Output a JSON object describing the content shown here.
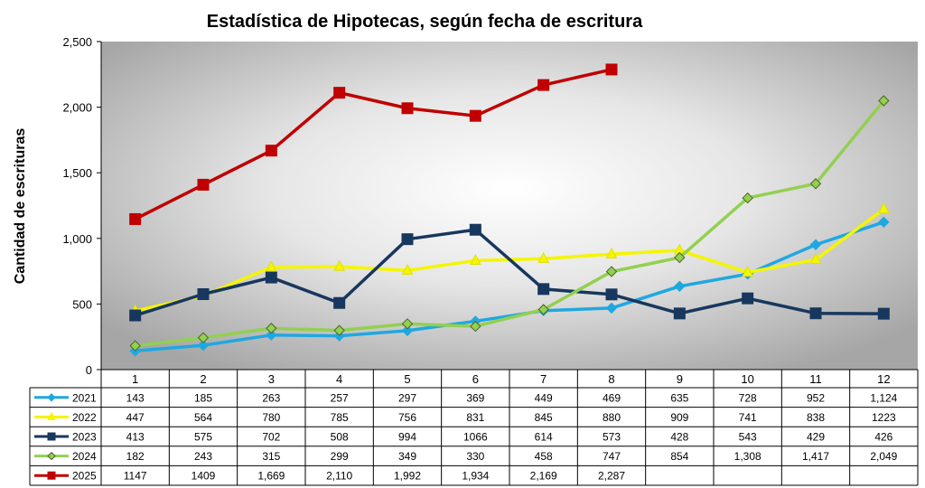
{
  "chart_data": {
    "type": "line",
    "title": "Estadística de Hipotecas, según fecha de escritura",
    "xlabel": "",
    "ylabel": "Cantidad de escrituras",
    "ylim": [
      0,
      2500
    ],
    "yticks": [
      "0",
      "500",
      "1,000",
      "1,500",
      "2,000",
      "2,500"
    ],
    "categories": [
      "1",
      "2",
      "3",
      "4",
      "5",
      "6",
      "7",
      "8",
      "9",
      "10",
      "11",
      "12"
    ],
    "grid": false,
    "legend": "data-table-left",
    "series": [
      {
        "name": "2021",
        "color": "#1fa8e0",
        "marker": "diamond",
        "values": [
          143,
          185,
          263,
          257,
          297,
          369,
          449,
          469,
          635,
          728,
          952,
          1124
        ],
        "labels": [
          "143",
          "185",
          "263",
          "257",
          "297",
          "369",
          "449",
          "469",
          "635",
          "728",
          "952",
          "1,124"
        ]
      },
      {
        "name": "2022",
        "color": "#f5f500",
        "marker": "triangle",
        "values": [
          447,
          564,
          780,
          785,
          756,
          831,
          845,
          880,
          909,
          741,
          838,
          1223
        ],
        "labels": [
          "447",
          "564",
          "780",
          "785",
          "756",
          "831",
          "845",
          "880",
          "909",
          "741",
          "838",
          "1223"
        ]
      },
      {
        "name": "2023",
        "color": "#17375e",
        "marker": "square",
        "values": [
          413,
          575,
          702,
          508,
          994,
          1066,
          614,
          573,
          428,
          543,
          429,
          426
        ],
        "labels": [
          "413",
          "575",
          "702",
          "508",
          "994",
          "1066",
          "614",
          "573",
          "428",
          "543",
          "429",
          "426"
        ]
      },
      {
        "name": "2024",
        "color": "#92d050",
        "marker": "diamond",
        "values": [
          182,
          243,
          315,
          299,
          349,
          330,
          458,
          747,
          854,
          1308,
          1417,
          2049
        ],
        "labels": [
          "182",
          "243",
          "315",
          "299",
          "349",
          "330",
          "458",
          "747",
          "854",
          "1,308",
          "1,417",
          "2,049"
        ]
      },
      {
        "name": "2025",
        "color": "#c00000",
        "marker": "square",
        "values": [
          1147,
          1409,
          1669,
          2110,
          1992,
          1934,
          2169,
          2287,
          null,
          null,
          null,
          null
        ],
        "labels": [
          "1147",
          "1409",
          "1,669",
          "2,110",
          "1,992",
          "1,934",
          "2,169",
          "2,287",
          "",
          "",
          "",
          ""
        ]
      }
    ]
  }
}
